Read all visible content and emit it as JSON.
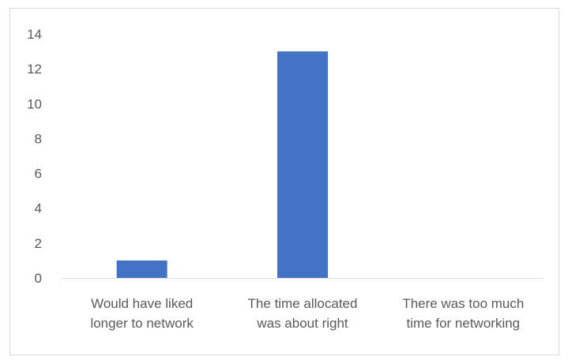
{
  "chart_data": {
    "type": "bar",
    "categories": [
      [
        "Would have liked",
        "longer to network"
      ],
      [
        "The time allocated",
        "was about right"
      ],
      [
        "There was too much",
        "time for networking"
      ]
    ],
    "values": [
      1,
      13,
      0
    ],
    "ylim": [
      0,
      14
    ],
    "yticks": [
      0,
      2,
      4,
      6,
      8,
      10,
      12,
      14
    ],
    "grid": false,
    "legend": "none",
    "bar_color": "#4472c4",
    "axis_color": "#d9d9d9",
    "text_color": "#595959"
  }
}
